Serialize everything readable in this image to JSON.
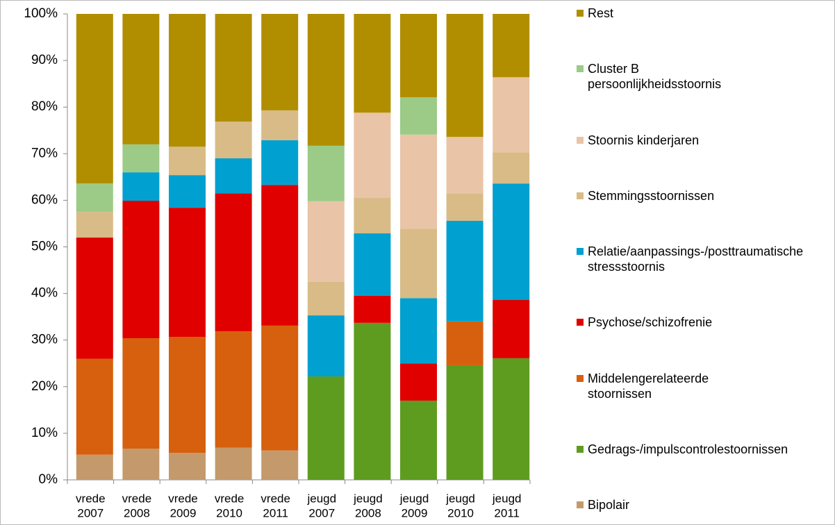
{
  "chart_data": {
    "type": "stacked_bar_100",
    "categories": [
      [
        "vrede",
        "2007"
      ],
      [
        "vrede",
        "2008"
      ],
      [
        "vrede",
        "2009"
      ],
      [
        "vrede",
        "2010"
      ],
      [
        "vrede",
        "2011"
      ],
      [
        "jeugd",
        "2007"
      ],
      [
        "jeugd",
        "2008"
      ],
      [
        "jeugd",
        "2009"
      ],
      [
        "jeugd",
        "2010"
      ],
      [
        "jeugd",
        "2011"
      ]
    ],
    "series": [
      {
        "name": "Bipolair",
        "color": "#c49a6c",
        "values": [
          5.4,
          6.7,
          5.8,
          6.9,
          6.3,
          0,
          0,
          0,
          0,
          0
        ]
      },
      {
        "name": "Gedrags-/impulscontrolestoornissen",
        "color": "#5e9c20",
        "values": [
          0,
          0,
          0,
          0,
          0,
          22.2,
          33.7,
          17,
          24.6,
          26.1
        ]
      },
      {
        "name": "Middelengerelateerde stoornissen",
        "color": "#d6600d",
        "values": [
          20.6,
          23.7,
          24.9,
          25,
          26.8,
          0,
          0,
          0,
          9.4,
          0
        ]
      },
      {
        "name": "Psychose/schizofrenie",
        "color": "#e00000",
        "values": [
          26,
          29.5,
          27.7,
          29.6,
          30.2,
          0,
          5.8,
          8,
          0,
          12.5
        ]
      },
      {
        "name": "Relatie/aanpassings-/posttraumatische stressstoornis",
        "color": "#00a0d0",
        "values": [
          0,
          6.1,
          7,
          7.5,
          9.6,
          13.1,
          13.4,
          14,
          21.6,
          25
        ]
      },
      {
        "name": "Stemmingsstoornissen",
        "color": "#d8bb86",
        "values": [
          5.5,
          0,
          6.1,
          7.9,
          6.4,
          7.2,
          7.6,
          14.9,
          5.8,
          6.7
        ]
      },
      {
        "name": "Stoornis kinderjaren",
        "color": "#e9c4a6",
        "values": [
          0,
          0,
          0,
          0,
          0,
          17.3,
          18.3,
          20.2,
          12.2,
          16.1
        ]
      },
      {
        "name": "Cluster B persoonlijkheidsstoornis",
        "color": "#9bcb86",
        "values": [
          6.1,
          6,
          0,
          0,
          0,
          11.9,
          0,
          8,
          0,
          0
        ]
      },
      {
        "name": "Rest",
        "color": "#b08e00",
        "values": [
          36.4,
          28,
          28.5,
          23.1,
          20.7,
          28.3,
          21.2,
          17.9,
          26.4,
          13.6
        ]
      }
    ],
    "ylim": [
      0,
      100
    ],
    "yticks": [
      {
        "value": 0,
        "label": "0%"
      },
      {
        "value": 10,
        "label": "10%"
      },
      {
        "value": 20,
        "label": "20%"
      },
      {
        "value": 30,
        "label": "30%"
      },
      {
        "value": 40,
        "label": "40%"
      },
      {
        "value": 50,
        "label": "50%"
      },
      {
        "value": 60,
        "label": "60%"
      },
      {
        "value": 70,
        "label": "70%"
      },
      {
        "value": 80,
        "label": "80%"
      },
      {
        "value": 90,
        "label": "90%"
      },
      {
        "value": 100,
        "label": "100%"
      }
    ],
    "legend": "right"
  }
}
